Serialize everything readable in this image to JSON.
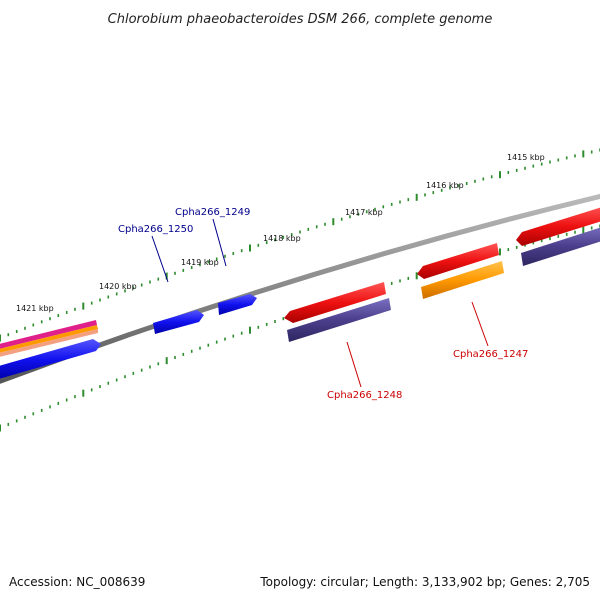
{
  "title": "Chlorobium phaeobacteroides DSM 266, complete genome",
  "accession": "Accession: NC_008639",
  "summary": "Topology: circular; Length: 3,133,902 bp; Genes: 2,705",
  "ticks": [
    "1415 kbp",
    "1416 kbp",
    "1417 kbp",
    "1418 kbp",
    "1419 kbp",
    "1420 kbp",
    "1421 kbp"
  ],
  "genes": [
    {
      "label": "Cpha266_1247",
      "color": "#cc0000"
    },
    {
      "label": "Cpha266_1248",
      "color": "#cc0000"
    },
    {
      "label": "Cpha266_1249",
      "color": "#00008b"
    },
    {
      "label": "Cpha266_1250",
      "color": "#00008b"
    }
  ],
  "colors": {
    "backbone": "#888888",
    "tick": "#2e8b2e",
    "cds_red": "#ee1111",
    "cds_blue": "#1111ee",
    "cds_purple": "#4b3f8c",
    "cds_orange": "#ff9900",
    "cds_magenta": "#e0208a",
    "cds_salmon": "#f4a080"
  }
}
